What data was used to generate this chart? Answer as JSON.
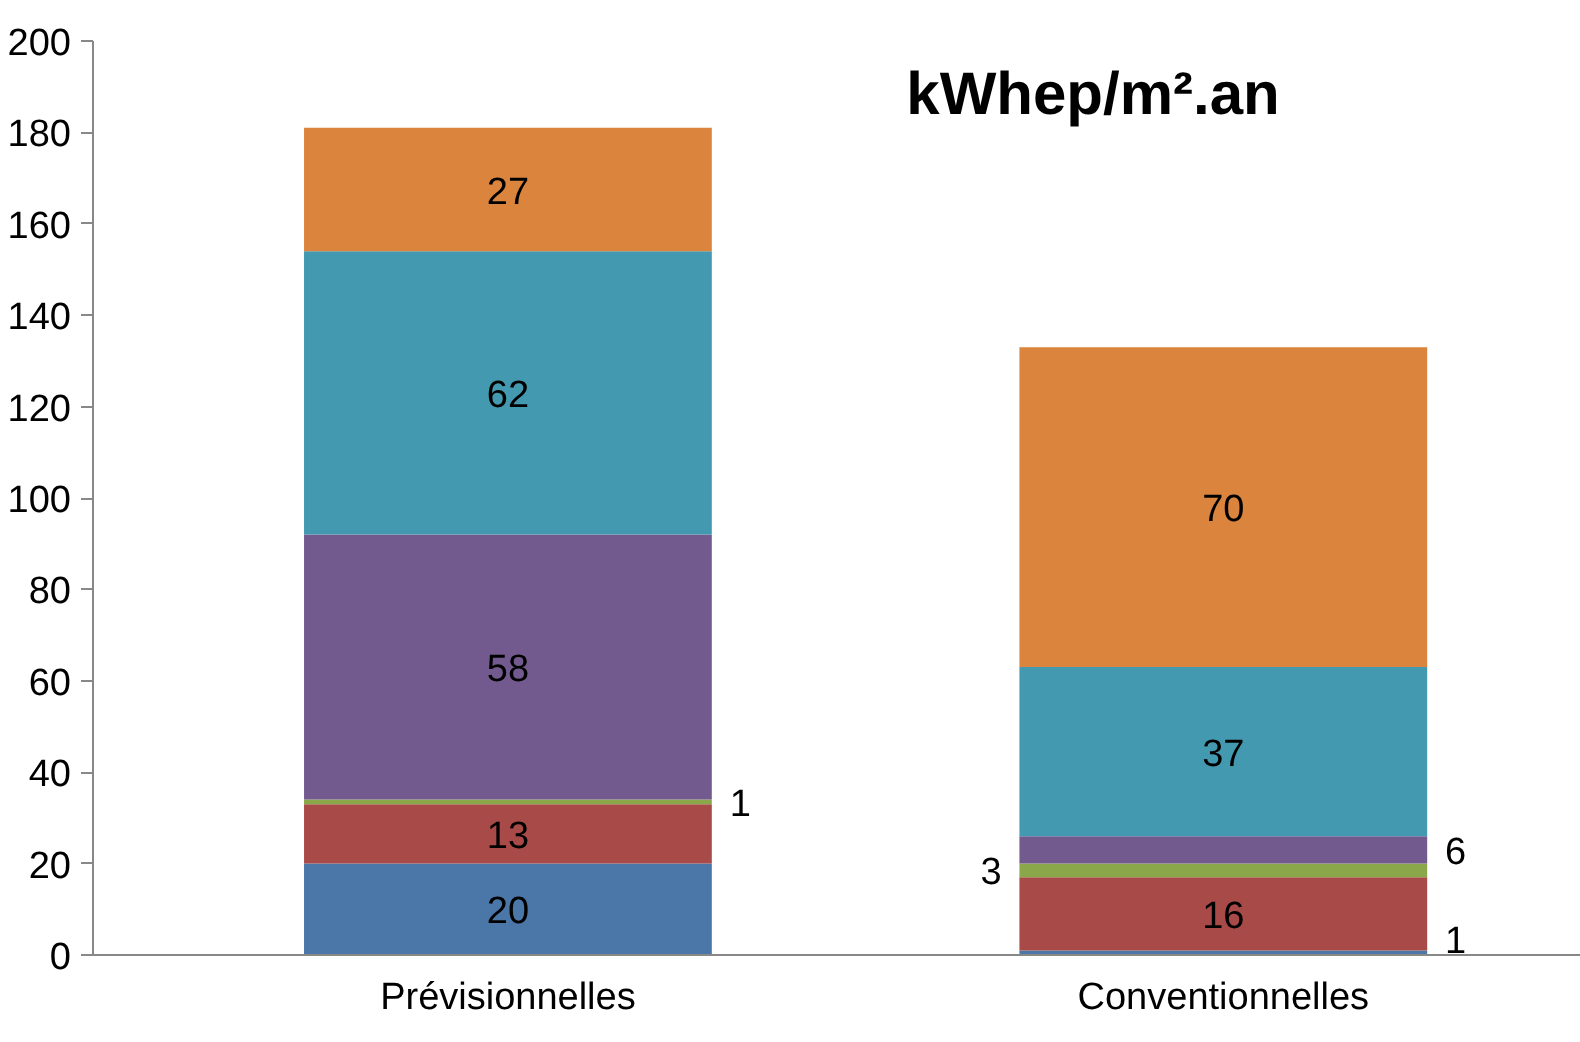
{
  "chart_data": {
    "type": "bar",
    "title": "kWhep/m².an",
    "stacked": true,
    "data_labels": true,
    "grid": false,
    "categories": [
      "Prévisionnelles",
      "Conventionnelles"
    ],
    "series": [
      {
        "color": "#4a76a8",
        "values": [
          20,
          1
        ]
      },
      {
        "color": "#a84a48",
        "values": [
          13,
          16
        ]
      },
      {
        "color": "#8aa84a",
        "values": [
          1,
          3
        ]
      },
      {
        "color": "#735a8e",
        "values": [
          58,
          6
        ]
      },
      {
        "color": "#4399b0",
        "values": [
          62,
          37
        ]
      },
      {
        "color": "#db843d",
        "values": [
          27,
          70
        ]
      }
    ],
    "ylim": [
      0,
      200
    ],
    "yticks": [
      0,
      20,
      40,
      60,
      80,
      100,
      120,
      140,
      160,
      180,
      200
    ]
  }
}
